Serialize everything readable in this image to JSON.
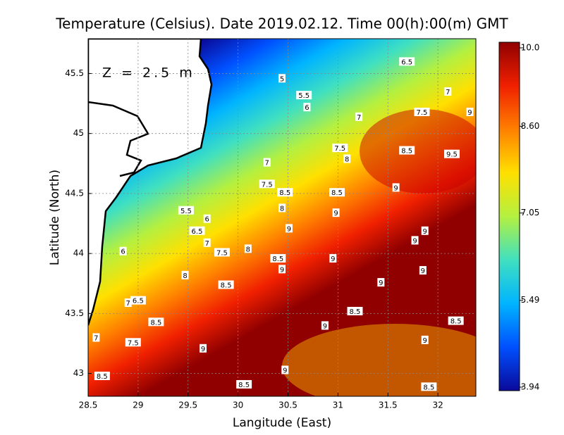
{
  "chart_data": {
    "type": "map",
    "title": "Temperature (Celsius). Date 2019.02.12. Time 00(h):00(m) GMT",
    "x_label": "Langitude (East)",
    "y_label": "Latitude (North)",
    "annotation": "Z = 2.5 m",
    "xlim": [
      28.5,
      32.38
    ],
    "ylim": [
      42.81,
      45.79
    ],
    "xticks": [
      28.5,
      29,
      29.5,
      30,
      30.5,
      31,
      31.5,
      32
    ],
    "yticks": [
      43,
      43.5,
      44,
      44.5,
      45,
      45.5
    ],
    "grid": true,
    "colorbar": {
      "range": [
        3.94,
        10.0
      ],
      "ticks": [
        {
          "value": 10.0,
          "label": "10.0"
        },
        {
          "value": 8.6,
          "label": "8.60"
        },
        7.05,
        5.49,
        3.94
      ],
      "colors": [
        "#0a0a9a",
        "#0050ff",
        "#00b4ff",
        "#40e0c0",
        "#b4f040",
        "#ffe000",
        "#ff8000",
        "#f02000",
        "#900000"
      ]
    },
    "contour_labels": [
      {
        "lon": 31.69,
        "lat": 45.6,
        "value": 6.5
      },
      {
        "lon": 30.44,
        "lat": 45.46,
        "value": 5
      },
      {
        "lon": 30.66,
        "lat": 45.32,
        "value": 5.5
      },
      {
        "lon": 30.69,
        "lat": 45.22,
        "value": 6
      },
      {
        "lon": 32.1,
        "lat": 45.35,
        "value": 7
      },
      {
        "lon": 31.21,
        "lat": 45.14,
        "value": 7
      },
      {
        "lon": 31.84,
        "lat": 45.18,
        "value": 7.5
      },
      {
        "lon": 32.32,
        "lat": 45.18,
        "value": 9
      },
      {
        "lon": 31.02,
        "lat": 44.88,
        "value": 7.5
      },
      {
        "lon": 31.09,
        "lat": 44.79,
        "value": 8
      },
      {
        "lon": 31.69,
        "lat": 44.86,
        "value": 8.5
      },
      {
        "lon": 32.14,
        "lat": 44.83,
        "value": 9.5
      },
      {
        "lon": 30.29,
        "lat": 44.76,
        "value": 7
      },
      {
        "lon": 30.29,
        "lat": 44.58,
        "value": 7.5
      },
      {
        "lon": 30.47,
        "lat": 44.51,
        "value": 8.5
      },
      {
        "lon": 30.99,
        "lat": 44.51,
        "value": 8.5
      },
      {
        "lon": 31.58,
        "lat": 44.55,
        "value": 9
      },
      {
        "lon": 29.48,
        "lat": 44.36,
        "value": 5.5
      },
      {
        "lon": 29.69,
        "lat": 44.29,
        "value": 6
      },
      {
        "lon": 29.59,
        "lat": 44.19,
        "value": 6.5
      },
      {
        "lon": 29.69,
        "lat": 44.09,
        "value": 7
      },
      {
        "lon": 30.44,
        "lat": 44.38,
        "value": 8
      },
      {
        "lon": 30.98,
        "lat": 44.34,
        "value": 9
      },
      {
        "lon": 30.51,
        "lat": 44.21,
        "value": 9
      },
      {
        "lon": 31.87,
        "lat": 44.19,
        "value": 9
      },
      {
        "lon": 28.85,
        "lat": 44.02,
        "value": 6
      },
      {
        "lon": 29.84,
        "lat": 44.01,
        "value": 7.5
      },
      {
        "lon": 30.1,
        "lat": 44.04,
        "value": 8
      },
      {
        "lon": 30.4,
        "lat": 43.96,
        "value": 8.5
      },
      {
        "lon": 30.95,
        "lat": 43.96,
        "value": 9
      },
      {
        "lon": 31.77,
        "lat": 44.11,
        "value": 9
      },
      {
        "lon": 30.44,
        "lat": 43.87,
        "value": 9
      },
      {
        "lon": 31.85,
        "lat": 43.86,
        "value": 9
      },
      {
        "lon": 29.47,
        "lat": 43.82,
        "value": 8
      },
      {
        "lon": 29.88,
        "lat": 43.74,
        "value": 8.5
      },
      {
        "lon": 31.43,
        "lat": 43.76,
        "value": 9
      },
      {
        "lon": 28.9,
        "lat": 43.59,
        "value": 7
      },
      {
        "lon": 29.0,
        "lat": 43.61,
        "value": 6.5
      },
      {
        "lon": 31.17,
        "lat": 43.52,
        "value": 8.5
      },
      {
        "lon": 29.18,
        "lat": 43.43,
        "value": 8.5
      },
      {
        "lon": 30.87,
        "lat": 43.4,
        "value": 9
      },
      {
        "lon": 32.18,
        "lat": 43.44,
        "value": 8.5
      },
      {
        "lon": 28.58,
        "lat": 43.3,
        "value": 7
      },
      {
        "lon": 28.95,
        "lat": 43.26,
        "value": 7.5
      },
      {
        "lon": 29.65,
        "lat": 43.21,
        "value": 9
      },
      {
        "lon": 31.87,
        "lat": 43.28,
        "value": 9
      },
      {
        "lon": 30.47,
        "lat": 43.03,
        "value": 9
      },
      {
        "lon": 28.64,
        "lat": 42.98,
        "value": 8.5
      },
      {
        "lon": 30.06,
        "lat": 42.91,
        "value": 8.5
      },
      {
        "lon": 31.91,
        "lat": 42.89,
        "value": 8.5
      }
    ]
  }
}
